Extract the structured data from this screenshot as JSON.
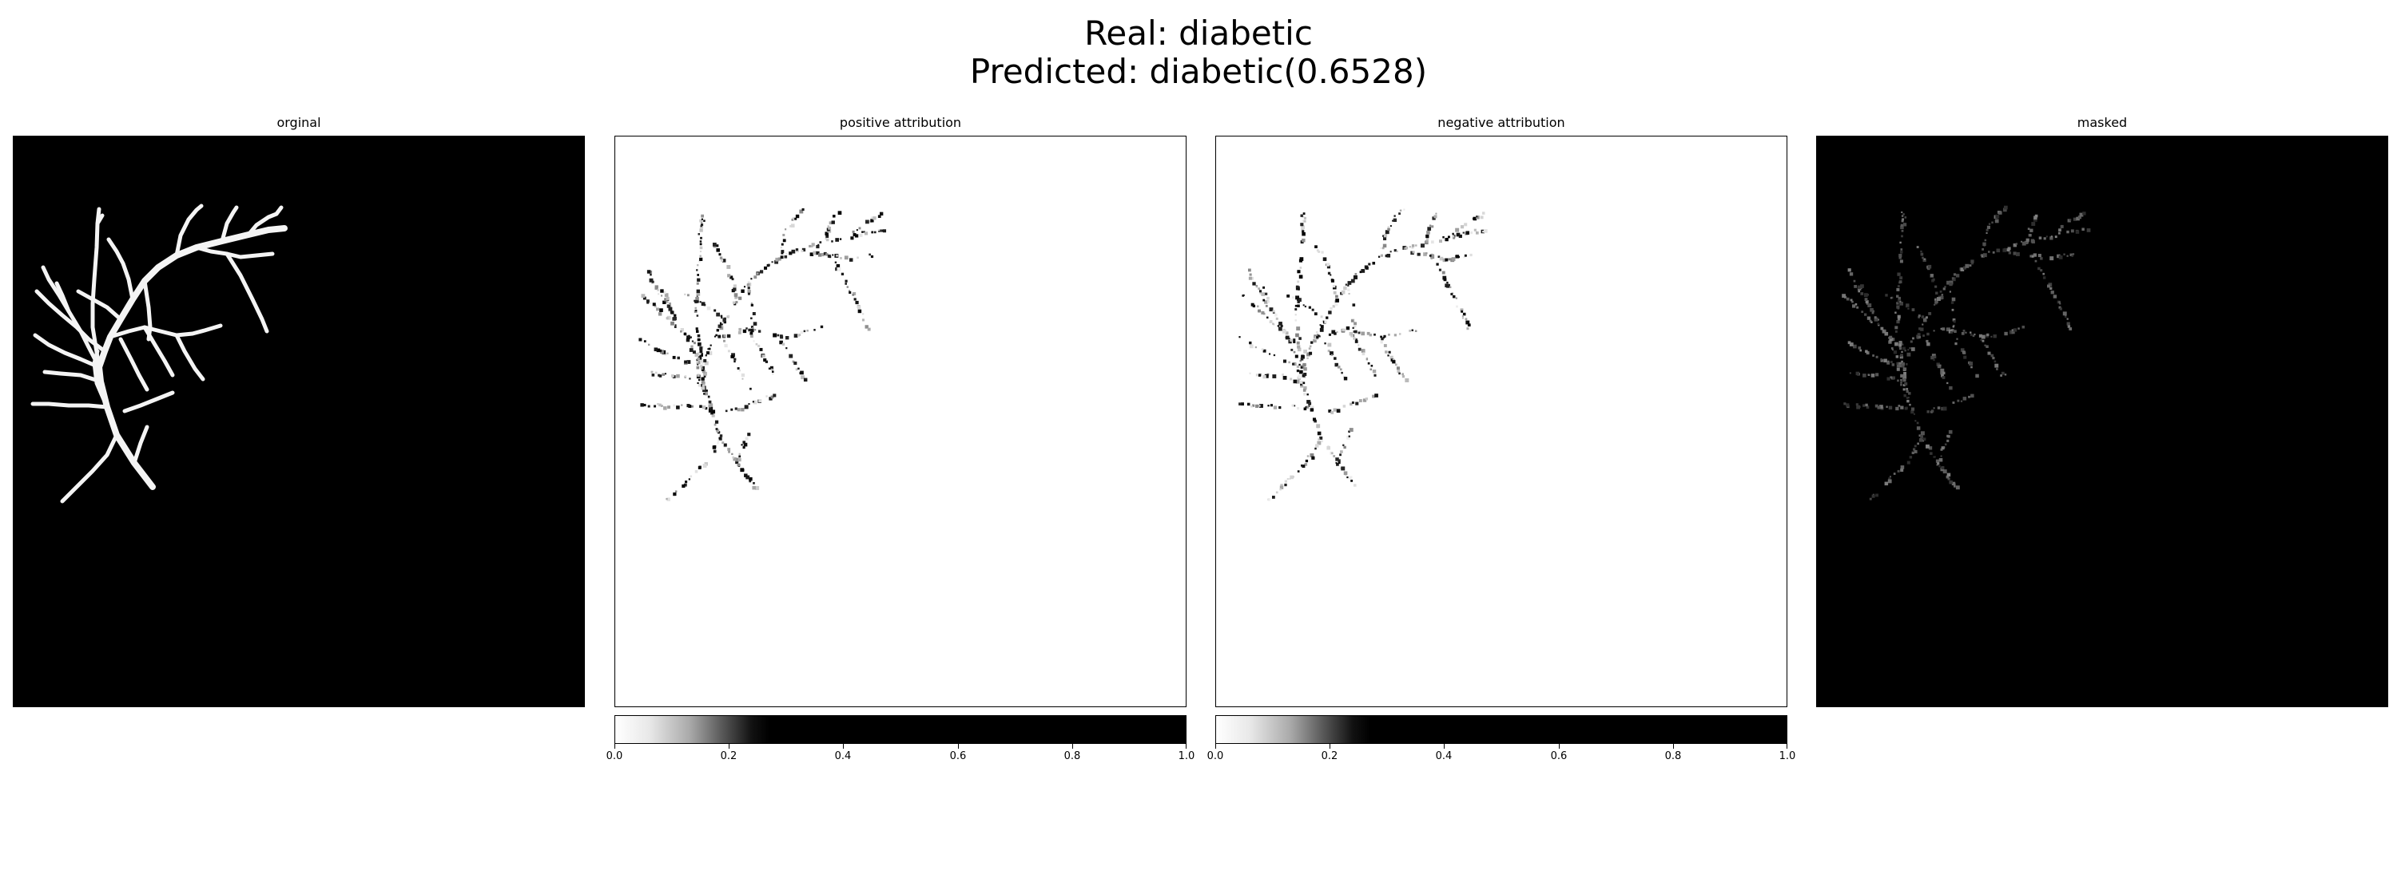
{
  "figure": {
    "title_real": "Real: diabetic",
    "title_predicted": "Predicted: diabetic(0.6528)"
  },
  "panels": [
    {
      "title": "orginal",
      "background": "#000000",
      "vessel_color": "#ffffff"
    },
    {
      "title": "positive attribution",
      "background": "#ffffff",
      "vessel_color": "#000000"
    },
    {
      "title": "negative attribution",
      "background": "#ffffff",
      "vessel_color": "#000000"
    },
    {
      "title": "masked",
      "background": "#000000",
      "vessel_color": "#888888"
    }
  ],
  "colorbar": {
    "range": [
      0.0,
      1.0
    ],
    "tick_labels": [
      "0.0",
      "0.2",
      "0.4",
      "0.6",
      "0.8",
      "1.0"
    ],
    "colormap": "white-to-black"
  }
}
